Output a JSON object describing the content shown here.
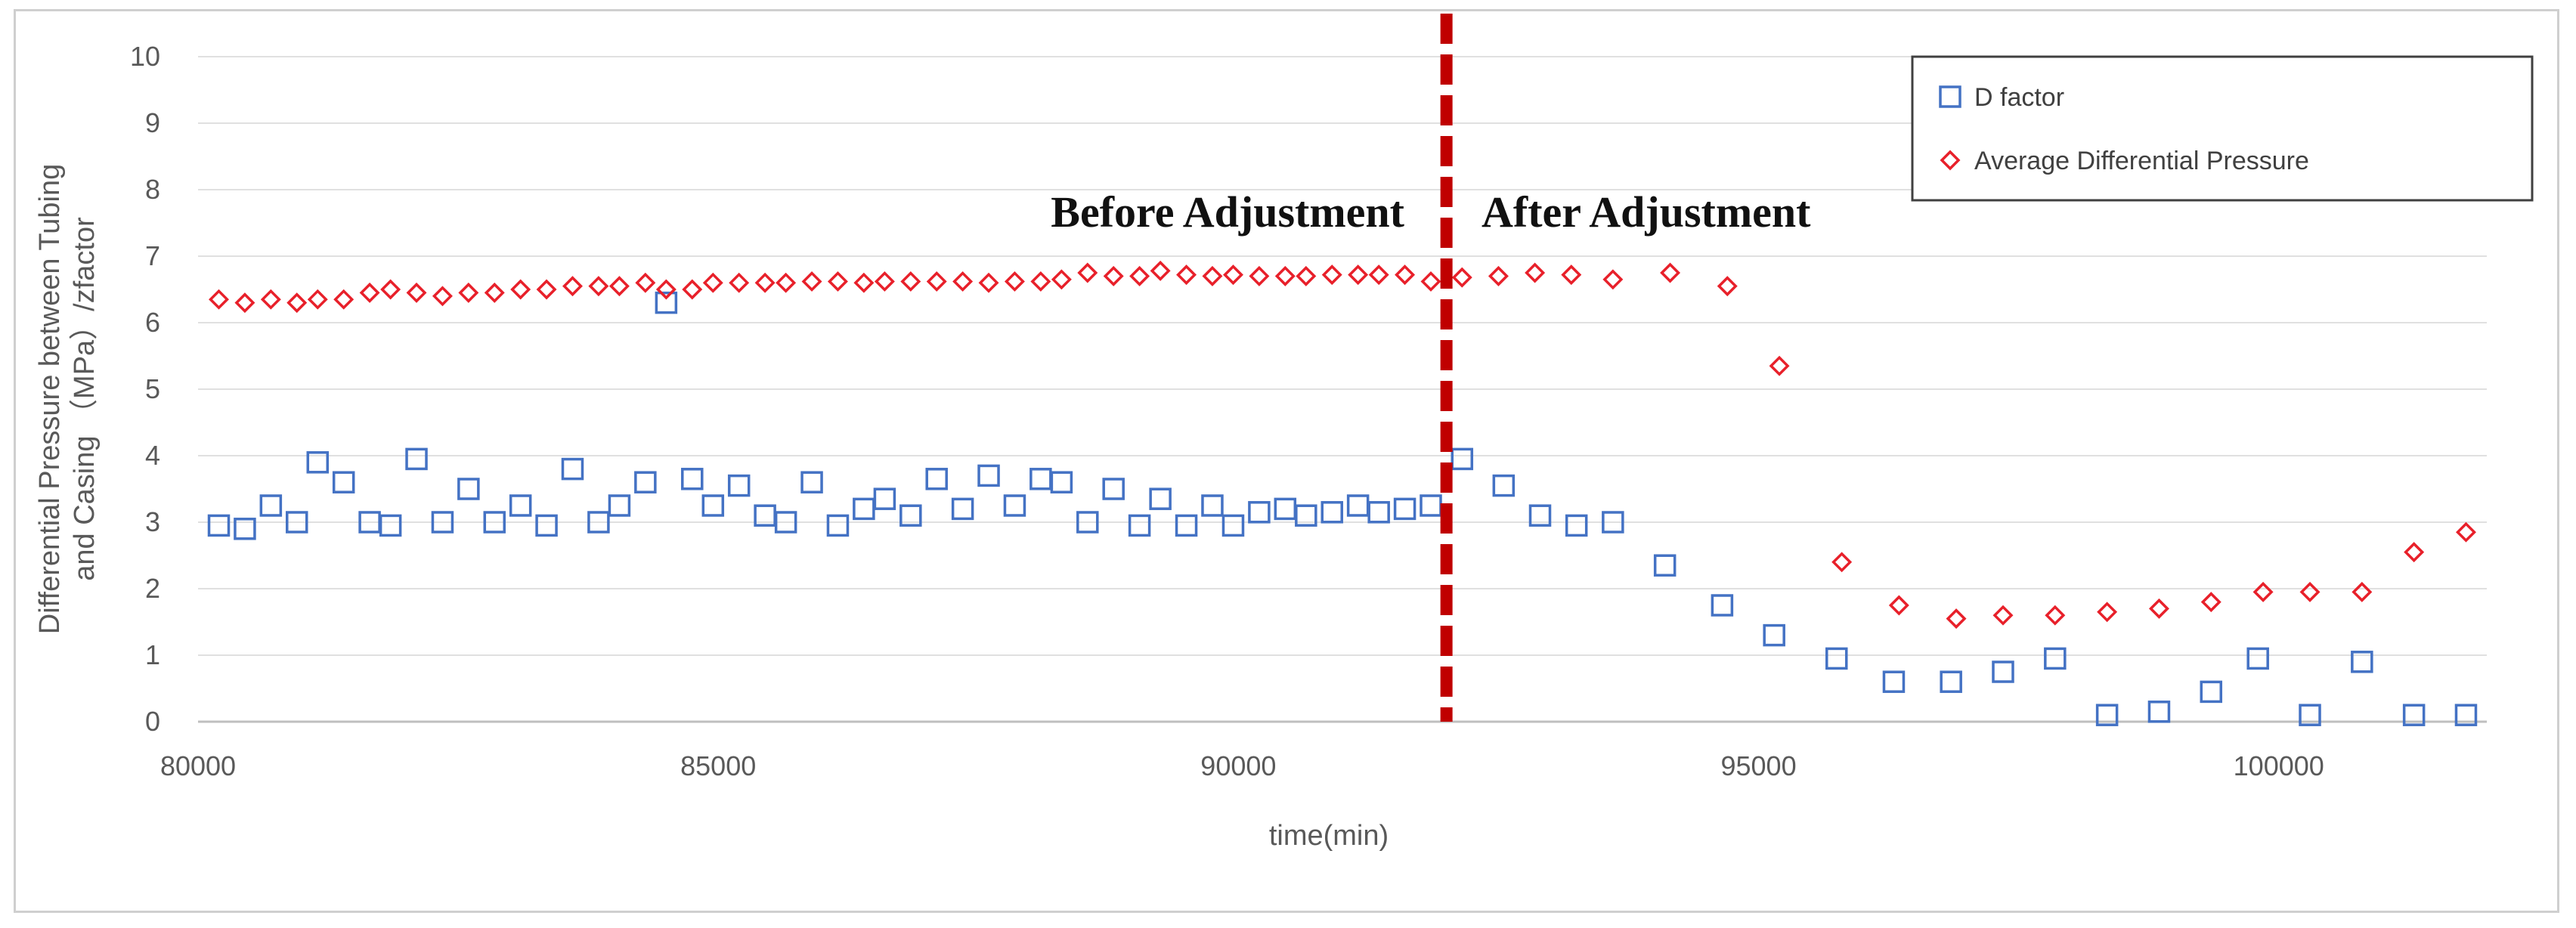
{
  "chart_data": {
    "type": "scatter",
    "xlabel": "time(min)",
    "ylabel_line1": "Differential Pressure between Tubing",
    "ylabel_line2": "and Casing （MPa）/zfactor",
    "xlim": [
      80000,
      102000
    ],
    "ylim": [
      0,
      10
    ],
    "xticks": [
      "80000",
      "85000",
      "90000",
      "95000",
      "100000"
    ],
    "yticks": [
      "0",
      "1",
      "2",
      "3",
      "4",
      "5",
      "6",
      "7",
      "8",
      "9",
      "10"
    ],
    "grid": "horizontal",
    "legend_placement": "top-right",
    "divider_x": 92000,
    "divider_color": "#c00000",
    "annotations": {
      "before": "Before Adjustment",
      "after": "After Adjustment"
    },
    "series": [
      {
        "name": "D factor",
        "marker": "square",
        "color": "#4472c4",
        "points": [
          [
            80200,
            2.95
          ],
          [
            80450,
            2.9
          ],
          [
            80700,
            3.25
          ],
          [
            80950,
            3.0
          ],
          [
            81150,
            3.9
          ],
          [
            81400,
            3.6
          ],
          [
            81650,
            3.0
          ],
          [
            81850,
            2.95
          ],
          [
            82100,
            3.95
          ],
          [
            82350,
            3.0
          ],
          [
            82600,
            3.5
          ],
          [
            82850,
            3.0
          ],
          [
            83100,
            3.25
          ],
          [
            83350,
            2.95
          ],
          [
            83600,
            3.8
          ],
          [
            83850,
            3.0
          ],
          [
            84050,
            3.25
          ],
          [
            84300,
            3.6
          ],
          [
            84500,
            6.3
          ],
          [
            84750,
            3.65
          ],
          [
            84950,
            3.25
          ],
          [
            85200,
            3.55
          ],
          [
            85450,
            3.1
          ],
          [
            85650,
            3.0
          ],
          [
            85900,
            3.6
          ],
          [
            86150,
            2.95
          ],
          [
            86400,
            3.2
          ],
          [
            86600,
            3.35
          ],
          [
            86850,
            3.1
          ],
          [
            87100,
            3.65
          ],
          [
            87350,
            3.2
          ],
          [
            87600,
            3.7
          ],
          [
            87850,
            3.25
          ],
          [
            88100,
            3.65
          ],
          [
            88300,
            3.6
          ],
          [
            88550,
            3.0
          ],
          [
            88800,
            3.5
          ],
          [
            89050,
            2.95
          ],
          [
            89250,
            3.35
          ],
          [
            89500,
            2.95
          ],
          [
            89750,
            3.25
          ],
          [
            89950,
            2.95
          ],
          [
            90200,
            3.15
          ],
          [
            90450,
            3.2
          ],
          [
            90650,
            3.1
          ],
          [
            90900,
            3.15
          ],
          [
            91150,
            3.25
          ],
          [
            91350,
            3.15
          ],
          [
            91600,
            3.2
          ],
          [
            91850,
            3.25
          ],
          [
            92150,
            3.95
          ],
          [
            92550,
            3.55
          ],
          [
            92900,
            3.1
          ],
          [
            93250,
            2.95
          ],
          [
            93600,
            3.0
          ],
          [
            94100,
            2.35
          ],
          [
            94650,
            1.75
          ],
          [
            95150,
            1.3
          ],
          [
            95750,
            0.95
          ],
          [
            96300,
            0.6
          ],
          [
            96850,
            0.6
          ],
          [
            97350,
            0.75
          ],
          [
            97850,
            0.95
          ],
          [
            98350,
            0.1
          ],
          [
            98850,
            0.15
          ],
          [
            99350,
            0.45
          ],
          [
            99800,
            0.95
          ],
          [
            100300,
            0.1
          ],
          [
            100800,
            0.9
          ],
          [
            101300,
            0.1
          ],
          [
            101800,
            0.1
          ]
        ]
      },
      {
        "name": "Average Differential Pressure",
        "marker": "diamond",
        "color": "#e8202a",
        "points": [
          [
            80200,
            6.35
          ],
          [
            80450,
            6.3
          ],
          [
            80700,
            6.35
          ],
          [
            80950,
            6.3
          ],
          [
            81150,
            6.35
          ],
          [
            81400,
            6.35
          ],
          [
            81650,
            6.45
          ],
          [
            81850,
            6.5
          ],
          [
            82100,
            6.45
          ],
          [
            82350,
            6.4
          ],
          [
            82600,
            6.45
          ],
          [
            82850,
            6.45
          ],
          [
            83100,
            6.5
          ],
          [
            83350,
            6.5
          ],
          [
            83600,
            6.55
          ],
          [
            83850,
            6.55
          ],
          [
            84050,
            6.55
          ],
          [
            84300,
            6.6
          ],
          [
            84500,
            6.5
          ],
          [
            84750,
            6.5
          ],
          [
            84950,
            6.6
          ],
          [
            85200,
            6.6
          ],
          [
            85450,
            6.6
          ],
          [
            85650,
            6.6
          ],
          [
            85900,
            6.62
          ],
          [
            86150,
            6.62
          ],
          [
            86400,
            6.6
          ],
          [
            86600,
            6.62
          ],
          [
            86850,
            6.62
          ],
          [
            87100,
            6.62
          ],
          [
            87350,
            6.62
          ],
          [
            87600,
            6.6
          ],
          [
            87850,
            6.62
          ],
          [
            88100,
            6.62
          ],
          [
            88300,
            6.65
          ],
          [
            88550,
            6.75
          ],
          [
            88800,
            6.7
          ],
          [
            89050,
            6.7
          ],
          [
            89250,
            6.78
          ],
          [
            89500,
            6.72
          ],
          [
            89750,
            6.7
          ],
          [
            89950,
            6.72
          ],
          [
            90200,
            6.7
          ],
          [
            90450,
            6.7
          ],
          [
            90650,
            6.7
          ],
          [
            90900,
            6.72
          ],
          [
            91150,
            6.72
          ],
          [
            91350,
            6.72
          ],
          [
            91600,
            6.72
          ],
          [
            91850,
            6.62
          ],
          [
            92150,
            6.68
          ],
          [
            92500,
            6.7
          ],
          [
            92850,
            6.75
          ],
          [
            93200,
            6.72
          ],
          [
            93600,
            6.65
          ],
          [
            94150,
            6.75
          ],
          [
            94700,
            6.55
          ],
          [
            95200,
            5.35
          ],
          [
            95800,
            2.4
          ],
          [
            96350,
            1.75
          ],
          [
            96900,
            1.55
          ],
          [
            97350,
            1.6
          ],
          [
            97850,
            1.6
          ],
          [
            98350,
            1.65
          ],
          [
            98850,
            1.7
          ],
          [
            99350,
            1.8
          ],
          [
            99850,
            1.95
          ],
          [
            100300,
            1.95
          ],
          [
            100800,
            1.95
          ],
          [
            101300,
            2.55
          ],
          [
            101800,
            2.85
          ]
        ]
      }
    ]
  }
}
